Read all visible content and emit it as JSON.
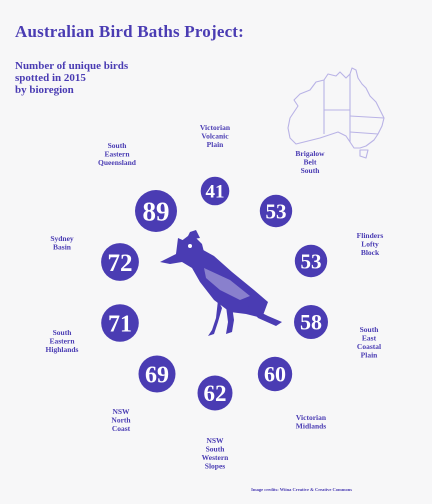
{
  "title": "Australian Bird Baths Project:",
  "subtitle_lines": [
    "Number of unique birds",
    "spotted in 2015",
    "by bioregion"
  ],
  "credit": "Image credits: Wiina Creative & Creative Commons",
  "colors": {
    "primary": "#4a3cb3",
    "background": "#f7f7f8",
    "map_stroke": "#b9b3e6"
  },
  "icons": {
    "bird": "bird-illustration",
    "map": "australia-map-outline"
  },
  "chart_data": {
    "type": "bubble",
    "layout": "radial",
    "series": [
      {
        "region": [
          "Victorian",
          "Volcanic",
          "Plain"
        ],
        "value": 41
      },
      {
        "region": [
          "Brigalow",
          "Belt",
          "South"
        ],
        "value": 53
      },
      {
        "region": [
          "Flinders",
          "Lofty",
          "Block"
        ],
        "value": 53
      },
      {
        "region": [
          "South",
          "East",
          "Coastal",
          "Plain"
        ],
        "value": 58
      },
      {
        "region": [
          "Victorian",
          "Midlands"
        ],
        "value": 60
      },
      {
        "region": [
          "NSW",
          "South",
          "Western",
          "Slopes"
        ],
        "value": 62
      },
      {
        "region": [
          "NSW",
          "North",
          "Coast"
        ],
        "value": 69
      },
      {
        "region": [
          "South",
          "Eastern",
          "Highlands"
        ],
        "value": 71
      },
      {
        "region": [
          "Sydney",
          "Basin"
        ],
        "value": 72
      },
      {
        "region": [
          "South",
          "Eastern",
          "Queensland"
        ],
        "value": 89
      }
    ]
  }
}
